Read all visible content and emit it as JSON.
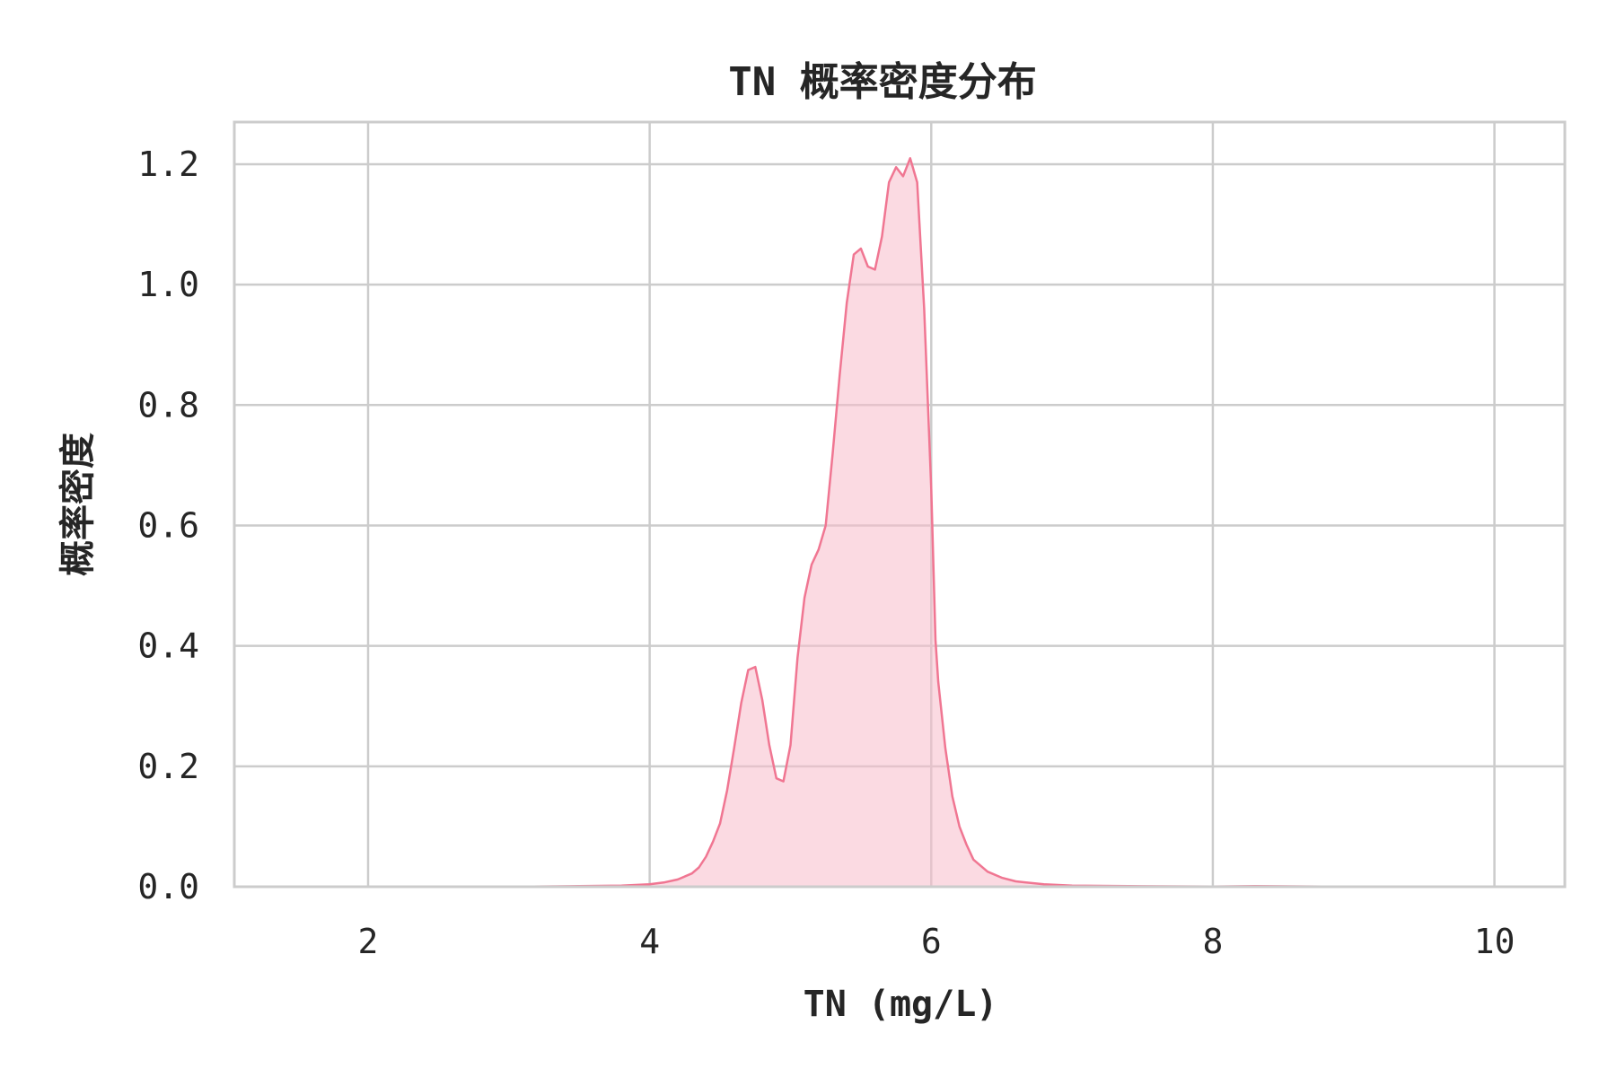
{
  "chart_data": {
    "type": "area",
    "title": "TN 概率密度分布",
    "xlabel": "TN (mg/L)",
    "ylabel": "概率密度",
    "xlim": [
      1.05,
      10.5
    ],
    "ylim": [
      0,
      1.27
    ],
    "xticks": [
      2,
      4,
      6,
      8,
      10
    ],
    "yticks": [
      0.0,
      0.2,
      0.4,
      0.6,
      0.8,
      1.0,
      1.2
    ],
    "ytick_labels": [
      "0.0",
      "0.2",
      "0.4",
      "0.6",
      "0.8",
      "1.0",
      "1.2"
    ],
    "grid": true,
    "colors": {
      "line": "#f07692",
      "fill": "#f7bccb",
      "grid": "#cccccc"
    },
    "series": [
      {
        "x": [
          1.05,
          2.0,
          3.0,
          3.5,
          3.8,
          4.0,
          4.1,
          4.2,
          4.3,
          4.35,
          4.4,
          4.45,
          4.5,
          4.55,
          4.6,
          4.65,
          4.7,
          4.75,
          4.8,
          4.85,
          4.9,
          4.95,
          5.0,
          5.05,
          5.1,
          5.15,
          5.2,
          5.25,
          5.3,
          5.35,
          5.4,
          5.45,
          5.5,
          5.55,
          5.6,
          5.65,
          5.7,
          5.75,
          5.8,
          5.85,
          5.9,
          5.95,
          6.0,
          6.03,
          6.05,
          6.1,
          6.15,
          6.2,
          6.25,
          6.3,
          6.4,
          6.5,
          6.6,
          6.8,
          7.0,
          7.4,
          8.0,
          8.3,
          9.0,
          10.0,
          10.5
        ],
        "y": [
          0.0,
          0.0,
          0.0,
          0.001,
          0.002,
          0.004,
          0.007,
          0.012,
          0.022,
          0.032,
          0.05,
          0.075,
          0.105,
          0.16,
          0.23,
          0.305,
          0.36,
          0.365,
          0.31,
          0.235,
          0.18,
          0.175,
          0.235,
          0.38,
          0.48,
          0.535,
          0.56,
          0.6,
          0.72,
          0.85,
          0.97,
          1.05,
          1.06,
          1.03,
          1.025,
          1.08,
          1.17,
          1.195,
          1.18,
          1.21,
          1.17,
          0.96,
          0.66,
          0.41,
          0.34,
          0.23,
          0.15,
          0.1,
          0.07,
          0.045,
          0.025,
          0.015,
          0.009,
          0.004,
          0.002,
          0.001,
          0.0005,
          0.001,
          0.0,
          0.0,
          0.0
        ]
      }
    ]
  }
}
